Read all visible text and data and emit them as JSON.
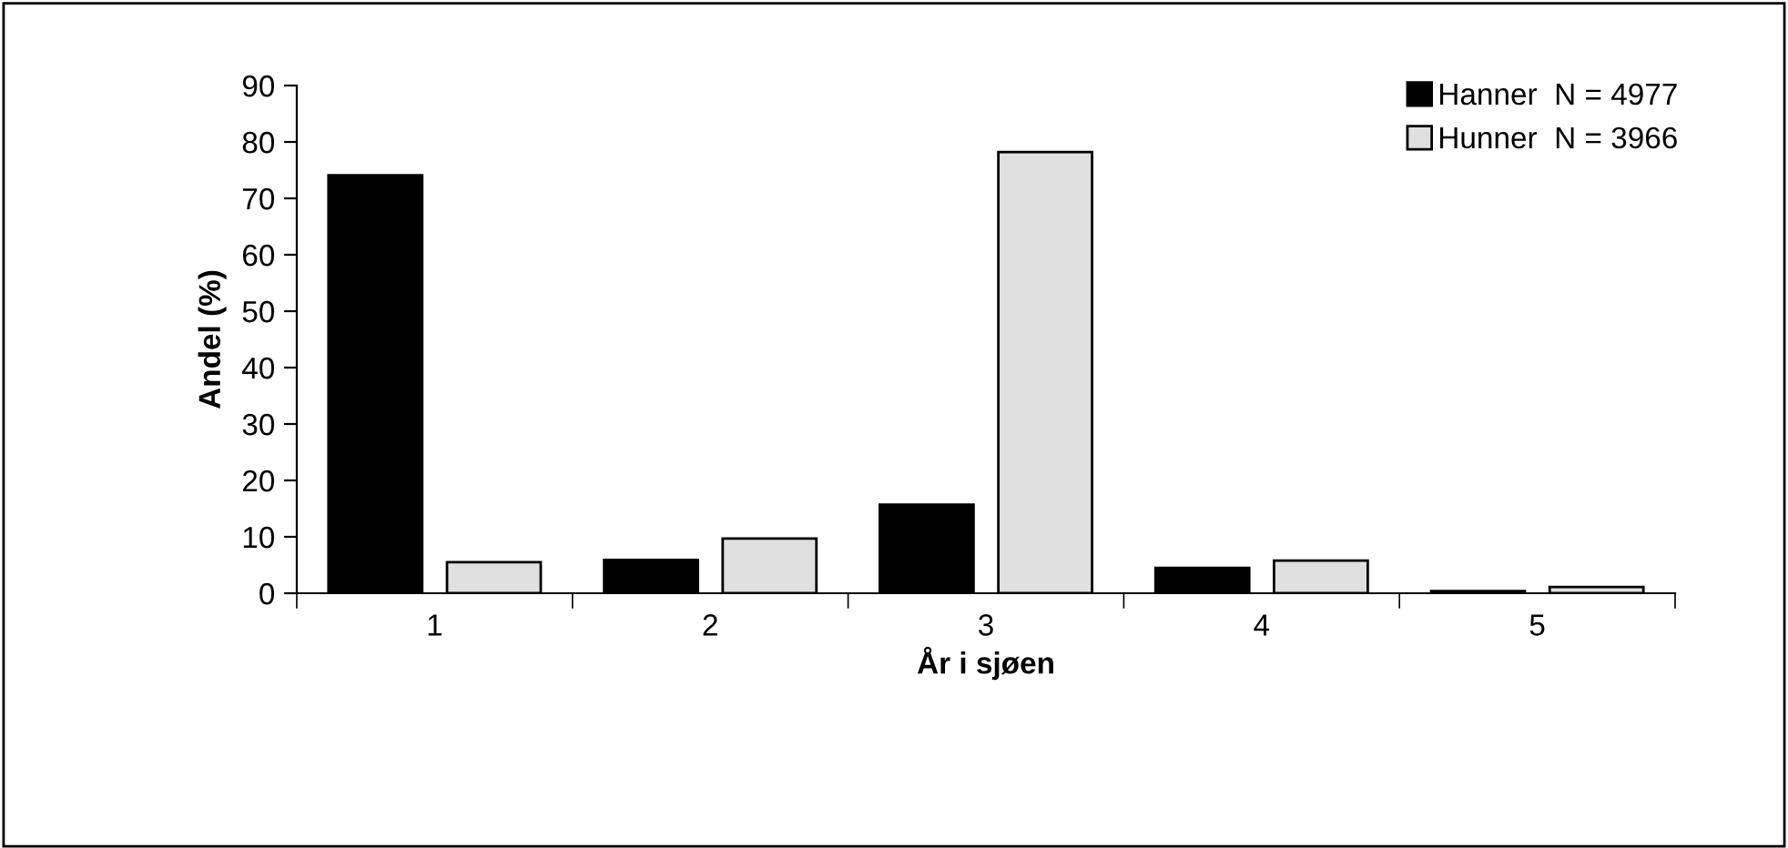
{
  "chart_data": {
    "type": "bar",
    "xlabel": "År i sjøen",
    "ylabel": "Andel (%)",
    "categories": [
      "1",
      "2",
      "3",
      "4",
      "5"
    ],
    "series": [
      {
        "name": "Hanner  N = 4977",
        "color": "#000000",
        "values": [
          74.1,
          5.9,
          15.7,
          4.5,
          0.4
        ]
      },
      {
        "name": "Hunner  N = 3966",
        "color": "#e0e0e0",
        "values": [
          5.5,
          9.7,
          78.2,
          5.8,
          1.1
        ]
      }
    ],
    "ylim": [
      0,
      90
    ],
    "yticks": [
      0,
      10,
      20,
      30,
      40,
      50,
      60,
      70,
      80,
      90
    ],
    "grid": false,
    "legend": "top right"
  }
}
